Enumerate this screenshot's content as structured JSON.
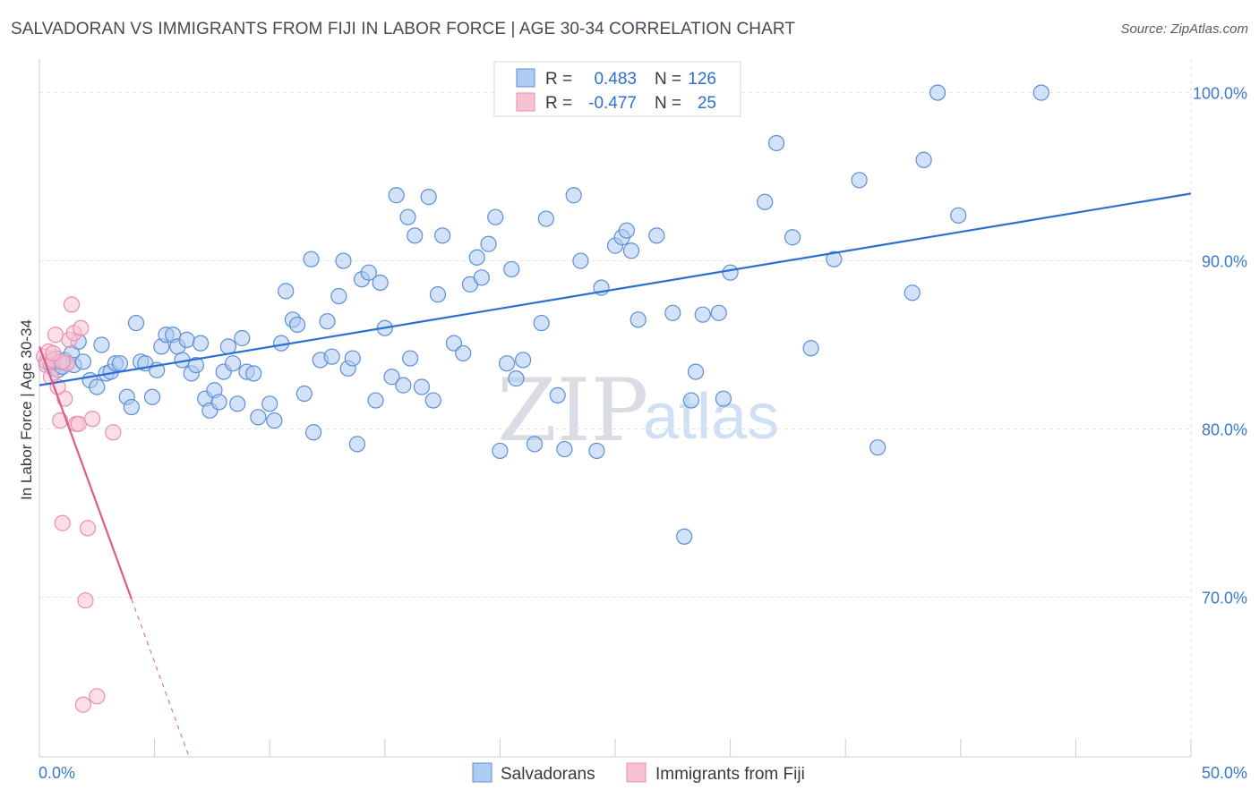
{
  "title": "SALVADORAN VS IMMIGRANTS FROM FIJI IN LABOR FORCE | AGE 30-34 CORRELATION CHART",
  "source": "Source: ZipAtlas.com",
  "watermark": {
    "zip": "ZIP",
    "atlas": "atlas"
  },
  "colors": {
    "blue_fill": "#aecbf2",
    "blue_stroke": "#5b8fd6",
    "blue_line": "#2b6fd1",
    "pink_fill": "#f7c2d3",
    "pink_stroke": "#ea8fae",
    "pink_line": "#e05a8a",
    "grid": "#e3e6ea",
    "tick_text": "#3a78c9"
  },
  "legend": {
    "rows": [
      {
        "r_label": "R =",
        "r_value": "0.483",
        "n_label": "N =",
        "n_value": "126"
      },
      {
        "r_label": "R =",
        "r_value": "-0.477",
        "n_label": "N =",
        "n_value": "25"
      }
    ]
  },
  "chart_data": {
    "type": "scatter",
    "title": "SALVADORAN VS IMMIGRANTS FROM FIJI IN LABOR FORCE | AGE 30-34 CORRELATION CHART",
    "xlabel": "",
    "ylabel": "In Labor Force | Age 30-34",
    "xlim": [
      0,
      50
    ],
    "ylim": [
      60.5,
      102
    ],
    "x_tick_labels": [
      {
        "value": 0,
        "label": "0.0%"
      },
      {
        "value": 50,
        "label": "50.0%"
      }
    ],
    "y_tick_labels": [
      {
        "value": 100,
        "label": "100.0%"
      },
      {
        "value": 90,
        "label": "90.0%"
      },
      {
        "value": 80,
        "label": "80.0%"
      },
      {
        "value": 70,
        "label": "70.0%"
      }
    ],
    "series": [
      {
        "name": "Salvadorans",
        "color": "#aecbf2",
        "trend": {
          "x": [
            0,
            50
          ],
          "y": [
            82.6,
            94.0
          ],
          "dashed_from": null
        },
        "points": [
          [
            0.3,
            84.0
          ],
          [
            0.5,
            83.8
          ],
          [
            0.6,
            83.6
          ],
          [
            0.7,
            84.2
          ],
          [
            0.8,
            83.5
          ],
          [
            0.9,
            84.0
          ],
          [
            1.0,
            83.7
          ],
          [
            1.1,
            84.1
          ],
          [
            1.2,
            83.9
          ],
          [
            1.4,
            84.5
          ],
          [
            1.5,
            83.8
          ],
          [
            1.7,
            85.2
          ],
          [
            1.9,
            84.0
          ],
          [
            2.2,
            82.9
          ],
          [
            2.5,
            82.5
          ],
          [
            2.7,
            85.0
          ],
          [
            2.9,
            83.3
          ],
          [
            3.1,
            83.4
          ],
          [
            3.3,
            83.9
          ],
          [
            3.5,
            83.9
          ],
          [
            3.8,
            81.9
          ],
          [
            4.0,
            81.3
          ],
          [
            4.2,
            86.3
          ],
          [
            4.4,
            84.0
          ],
          [
            4.6,
            83.9
          ],
          [
            4.9,
            81.9
          ],
          [
            5.1,
            83.5
          ],
          [
            5.3,
            84.9
          ],
          [
            5.5,
            85.6
          ],
          [
            5.8,
            85.6
          ],
          [
            6.0,
            84.9
          ],
          [
            6.2,
            84.1
          ],
          [
            6.4,
            85.3
          ],
          [
            6.6,
            83.3
          ],
          [
            6.8,
            83.8
          ],
          [
            7.0,
            85.1
          ],
          [
            7.2,
            81.8
          ],
          [
            7.4,
            81.1
          ],
          [
            7.6,
            82.3
          ],
          [
            7.8,
            81.6
          ],
          [
            8.0,
            83.4
          ],
          [
            8.2,
            84.9
          ],
          [
            8.4,
            83.9
          ],
          [
            8.6,
            81.5
          ],
          [
            8.8,
            85.4
          ],
          [
            9.0,
            83.4
          ],
          [
            9.3,
            83.3
          ],
          [
            9.5,
            80.7
          ],
          [
            10.0,
            81.5
          ],
          [
            10.2,
            80.5
          ],
          [
            10.5,
            85.1
          ],
          [
            10.7,
            88.2
          ],
          [
            11.0,
            86.5
          ],
          [
            11.2,
            86.2
          ],
          [
            11.5,
            82.1
          ],
          [
            11.8,
            90.1
          ],
          [
            11.9,
            79.8
          ],
          [
            12.2,
            84.1
          ],
          [
            12.5,
            86.4
          ],
          [
            12.7,
            84.3
          ],
          [
            13.0,
            87.9
          ],
          [
            13.2,
            90.0
          ],
          [
            13.4,
            83.6
          ],
          [
            13.6,
            84.2
          ],
          [
            13.8,
            79.1
          ],
          [
            14.0,
            88.9
          ],
          [
            14.3,
            89.3
          ],
          [
            14.6,
            81.7
          ],
          [
            14.8,
            88.7
          ],
          [
            15.0,
            86.0
          ],
          [
            15.3,
            83.1
          ],
          [
            15.5,
            93.9
          ],
          [
            15.8,
            82.6
          ],
          [
            16.1,
            84.2
          ],
          [
            16.3,
            91.5
          ],
          [
            16.6,
            82.5
          ],
          [
            16.9,
            93.8
          ],
          [
            17.1,
            81.7
          ],
          [
            17.3,
            88.0
          ],
          [
            17.5,
            91.5
          ],
          [
            18.0,
            85.1
          ],
          [
            18.4,
            84.5
          ],
          [
            18.7,
            88.6
          ],
          [
            19.0,
            90.2
          ],
          [
            19.2,
            89.0
          ],
          [
            19.5,
            91.0
          ],
          [
            19.8,
            92.6
          ],
          [
            20.0,
            78.7
          ],
          [
            20.3,
            83.9
          ],
          [
            20.5,
            89.5
          ],
          [
            20.7,
            83.0
          ],
          [
            21.0,
            84.1
          ],
          [
            21.5,
            79.1
          ],
          [
            21.8,
            86.3
          ],
          [
            22.0,
            92.5
          ],
          [
            22.5,
            82.0
          ],
          [
            22.8,
            78.8
          ],
          [
            23.2,
            93.9
          ],
          [
            23.5,
            90.0
          ],
          [
            24.2,
            78.7
          ],
          [
            24.4,
            88.4
          ],
          [
            25.0,
            90.9
          ],
          [
            25.3,
            91.4
          ],
          [
            25.5,
            91.8
          ],
          [
            25.7,
            90.6
          ],
          [
            26.0,
            86.5
          ],
          [
            26.8,
            91.5
          ],
          [
            27.5,
            86.9
          ],
          [
            28.0,
            73.6
          ],
          [
            28.3,
            81.7
          ],
          [
            28.5,
            83.4
          ],
          [
            28.8,
            86.8
          ],
          [
            29.5,
            86.9
          ],
          [
            29.7,
            81.8
          ],
          [
            30.0,
            89.3
          ],
          [
            31.5,
            93.5
          ],
          [
            32.0,
            97.0
          ],
          [
            32.7,
            91.4
          ],
          [
            33.5,
            84.8
          ],
          [
            34.5,
            90.1
          ],
          [
            35.6,
            94.8
          ],
          [
            36.4,
            78.9
          ],
          [
            37.9,
            88.1
          ],
          [
            38.4,
            96.0
          ],
          [
            39.0,
            100.0
          ],
          [
            39.9,
            92.7
          ],
          [
            43.5,
            100.0
          ],
          [
            16.0,
            92.6
          ]
        ]
      },
      {
        "name": "Immigrants from Fiji",
        "color": "#f7c2d3",
        "trend": {
          "x": [
            0,
            6.5
          ],
          "y": [
            84.9,
            60.5
          ],
          "dashed_from": 4.0
        },
        "points": [
          [
            0.2,
            84.3
          ],
          [
            0.3,
            83.8
          ],
          [
            0.4,
            84.6
          ],
          [
            0.5,
            83.1
          ],
          [
            0.6,
            84.1
          ],
          [
            0.7,
            85.6
          ],
          [
            0.9,
            80.5
          ],
          [
            1.0,
            74.4
          ],
          [
            1.1,
            81.8
          ],
          [
            1.2,
            83.9
          ],
          [
            1.3,
            85.3
          ],
          [
            1.4,
            87.4
          ],
          [
            1.5,
            85.7
          ],
          [
            1.6,
            80.3
          ],
          [
            1.7,
            80.3
          ],
          [
            1.8,
            86.0
          ],
          [
            1.9,
            63.6
          ],
          [
            2.0,
            69.8
          ],
          [
            2.1,
            74.1
          ],
          [
            2.3,
            80.6
          ],
          [
            2.5,
            64.1
          ],
          [
            3.2,
            79.8
          ],
          [
            0.8,
            82.5
          ],
          [
            1.0,
            84.0
          ],
          [
            0.6,
            84.5
          ]
        ]
      }
    ],
    "legend_entries": [
      "Salvadorans",
      "Immigrants from Fiji"
    ]
  }
}
